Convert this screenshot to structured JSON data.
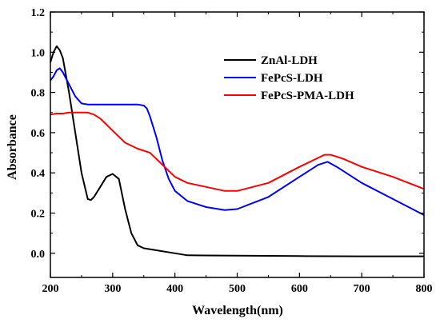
{
  "chart_data": {
    "type": "line",
    "title": "",
    "xlabel": "Wavelength(nm)",
    "ylabel": "Absorbance",
    "xlim": [
      200,
      800
    ],
    "ylim": [
      -0.12,
      1.2
    ],
    "x_ticks": [
      200,
      300,
      400,
      500,
      600,
      700,
      800
    ],
    "y_ticks": [
      0.0,
      0.2,
      0.4,
      0.6,
      0.8,
      1.0,
      1.2
    ],
    "x_tick_labels": [
      "200",
      "300",
      "400",
      "500",
      "600",
      "700",
      "800"
    ],
    "y_tick_labels": [
      "0.0",
      "0.2",
      "0.4",
      "0.6",
      "0.8",
      "1.0",
      "1.2"
    ],
    "grid": false,
    "legend_position": "top-right",
    "series": [
      {
        "name": "ZnAl-LDH",
        "color": "#000000",
        "x": [
          200,
          205,
          210,
          215,
          220,
          230,
          240,
          250,
          260,
          265,
          270,
          280,
          290,
          300,
          310,
          320,
          330,
          340,
          350,
          370,
          400,
          420,
          500,
          600,
          700,
          800
        ],
        "y": [
          0.95,
          1.0,
          1.03,
          1.01,
          0.97,
          0.8,
          0.6,
          0.4,
          0.27,
          0.265,
          0.28,
          0.33,
          0.38,
          0.395,
          0.37,
          0.22,
          0.1,
          0.04,
          0.025,
          0.015,
          0.0,
          -0.01,
          -0.012,
          -0.014,
          -0.015,
          -0.015
        ]
      },
      {
        "name": "FePcS-LDH",
        "color": "#0000ff",
        "x": [
          200,
          205,
          210,
          215,
          220,
          230,
          240,
          250,
          260,
          280,
          300,
          320,
          340,
          350,
          355,
          360,
          370,
          380,
          390,
          400,
          420,
          450,
          480,
          500,
          550,
          600,
          630,
          645,
          660,
          700,
          750,
          800
        ],
        "y": [
          0.86,
          0.88,
          0.91,
          0.92,
          0.9,
          0.84,
          0.78,
          0.745,
          0.74,
          0.74,
          0.74,
          0.74,
          0.74,
          0.735,
          0.72,
          0.68,
          0.58,
          0.46,
          0.37,
          0.31,
          0.26,
          0.23,
          0.215,
          0.22,
          0.28,
          0.38,
          0.44,
          0.455,
          0.43,
          0.35,
          0.27,
          0.19
        ]
      },
      {
        "name": "FePcS-PMA-LDH",
        "color": "#ff0000",
        "x": [
          200,
          210,
          220,
          230,
          240,
          250,
          260,
          270,
          280,
          290,
          300,
          320,
          340,
          360,
          380,
          400,
          420,
          450,
          480,
          500,
          550,
          600,
          640,
          650,
          670,
          700,
          750,
          800
        ],
        "y": [
          0.69,
          0.695,
          0.695,
          0.7,
          0.7,
          0.7,
          0.7,
          0.69,
          0.67,
          0.64,
          0.61,
          0.55,
          0.52,
          0.5,
          0.44,
          0.38,
          0.35,
          0.33,
          0.31,
          0.31,
          0.35,
          0.43,
          0.49,
          0.49,
          0.47,
          0.43,
          0.38,
          0.32
        ]
      }
    ]
  }
}
